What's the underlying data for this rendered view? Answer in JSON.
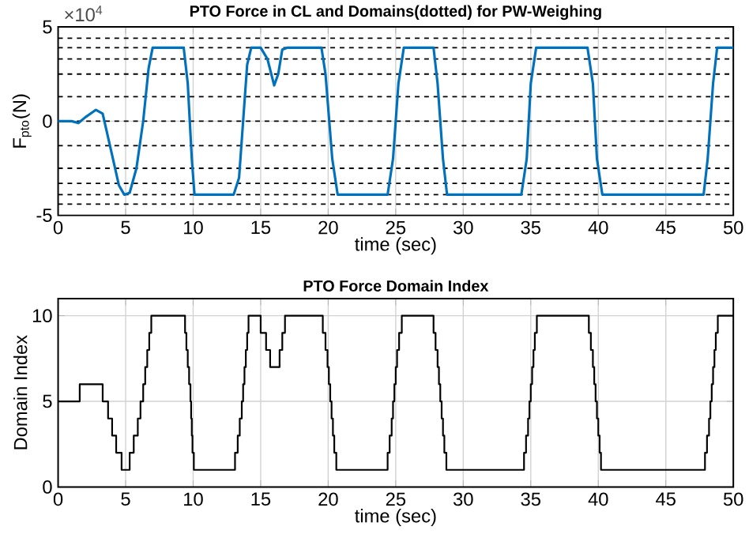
{
  "chart_data": [
    {
      "type": "line",
      "title": "PTO Force in CL and Domains(dotted) for PW-Weighing",
      "xlabel": "time (sec)",
      "ylabel": "F$_{pto}$(N)",
      "annotations": [
        "×10$^{4}$"
      ],
      "xlim": [
        0,
        50
      ],
      "ylim": [
        -5,
        5
      ],
      "xticks": [
        0,
        5,
        10,
        15,
        20,
        25,
        30,
        35,
        40,
        45,
        50
      ],
      "yticks": [
        -5,
        0,
        5
      ],
      "grid": true,
      "series": [
        {
          "color": "#0072bd",
          "x": [
            0,
            1,
            1.5,
            2,
            2.8,
            3.3,
            4,
            4.5,
            4.9,
            5.3,
            5.8,
            6.3,
            6.7,
            7,
            9.3,
            9.6,
            9.9,
            10.1,
            13,
            13.4,
            13.7,
            14.0,
            14.3,
            15,
            15.5,
            16,
            16.3,
            16.6,
            17,
            19.5,
            19.8,
            20.3,
            20.7,
            24.4,
            24.8,
            25.2,
            25.6,
            27.8,
            28.1,
            28.5,
            28.8,
            34.3,
            34.7,
            35,
            35.4,
            39.2,
            39.6,
            39.9,
            40.3,
            47.8,
            48.1,
            48.5,
            48.8,
            50
          ],
          "values": [
            0,
            0,
            -0.1,
            0.2,
            0.6,
            0.4,
            -1.8,
            -3.4,
            -3.9,
            -3.8,
            -2.5,
            0,
            2.8,
            3.9,
            3.9,
            2,
            -2,
            -3.9,
            -3.9,
            -3,
            0,
            3,
            3.9,
            3.9,
            3.3,
            1.9,
            2.5,
            3.8,
            3.9,
            3.9,
            2.5,
            -2,
            -3.9,
            -3.9,
            -2,
            2,
            3.9,
            3.9,
            2,
            -2,
            -3.9,
            -3.9,
            -2,
            2,
            3.9,
            3.9,
            2,
            -2,
            -3.9,
            -3.9,
            -2,
            2,
            3.9,
            3.9
          ]
        }
      ],
      "ref_lines": [
        {
          "axis": "y",
          "value": 4.4,
          "color": "#000000",
          "line_style": "dashed"
        },
        {
          "axis": "y",
          "value": 3.9,
          "color": "#000000",
          "line_style": "dashed"
        },
        {
          "axis": "y",
          "value": 3.3,
          "color": "#000000",
          "line_style": "dashed"
        },
        {
          "axis": "y",
          "value": 2.5,
          "color": "#000000",
          "line_style": "dashed"
        },
        {
          "axis": "y",
          "value": 1.3,
          "color": "#000000",
          "line_style": "dashed"
        },
        {
          "axis": "y",
          "value": 0,
          "color": "#000000",
          "line_style": "dashed"
        },
        {
          "axis": "y",
          "value": -1.3,
          "color": "#000000",
          "line_style": "dashed"
        },
        {
          "axis": "y",
          "value": -2.5,
          "color": "#000000",
          "line_style": "dashed"
        },
        {
          "axis": "y",
          "value": -3.3,
          "color": "#000000",
          "line_style": "dashed"
        },
        {
          "axis": "y",
          "value": -3.9,
          "color": "#000000",
          "line_style": "dashed"
        },
        {
          "axis": "y",
          "value": -4.4,
          "color": "#000000",
          "line_style": "dashed"
        }
      ]
    },
    {
      "type": "step",
      "title": "PTO Force Domain Index",
      "xlabel": "time (sec)",
      "ylabel": "Domain Index",
      "xlim": [
        0,
        50
      ],
      "ylim": [
        0,
        11
      ],
      "xticks": [
        0,
        5,
        10,
        15,
        20,
        25,
        30,
        35,
        40,
        45,
        50
      ],
      "yticks": [
        0,
        5,
        10
      ],
      "grid": true,
      "series": [
        {
          "color": "#000000",
          "x": [
            0,
            1.6,
            3.3,
            3.7,
            4.0,
            4.3,
            4.7,
            5.3,
            5.6,
            5.9,
            6.1,
            6.3,
            6.45,
            6.6,
            6.75,
            6.9,
            9.4,
            9.5,
            9.6,
            9.7,
            9.8,
            9.85,
            9.9,
            9.95,
            10.05,
            13.1,
            13.3,
            13.45,
            13.6,
            13.7,
            13.8,
            13.9,
            14.0,
            14.1,
            15.0,
            15.4,
            15.7,
            16.4,
            16.6,
            16.8,
            19.6,
            19.8,
            19.95,
            20.05,
            20.15,
            20.25,
            20.35,
            20.45,
            20.6,
            24.4,
            24.55,
            24.7,
            24.8,
            24.9,
            25.0,
            25.1,
            25.25,
            25.45,
            27.8,
            27.95,
            28.1,
            28.2,
            28.3,
            28.4,
            28.5,
            28.6,
            28.75,
            34.5,
            34.65,
            34.8,
            34.9,
            35.0,
            35.1,
            35.2,
            35.3,
            35.45,
            39.3,
            39.45,
            39.6,
            39.7,
            39.8,
            39.9,
            40.0,
            40.1,
            40.2,
            47.9,
            48.05,
            48.2,
            48.3,
            48.4,
            48.5,
            48.6,
            48.7,
            48.85,
            50
          ],
          "values": [
            5,
            6,
            5,
            4,
            3,
            2,
            1,
            2,
            3,
            4,
            5,
            6,
            7,
            8,
            9,
            10,
            9,
            8,
            7,
            6,
            5,
            4,
            3,
            2,
            1,
            2,
            3,
            4,
            5,
            6,
            7,
            8,
            9,
            10,
            9,
            8,
            7,
            8,
            9,
            10,
            9,
            8,
            7,
            6,
            5,
            4,
            3,
            2,
            1,
            2,
            3,
            4,
            5,
            6,
            7,
            8,
            9,
            10,
            9,
            8,
            7,
            6,
            5,
            4,
            3,
            2,
            1,
            2,
            3,
            4,
            5,
            6,
            7,
            8,
            9,
            10,
            9,
            8,
            7,
            6,
            5,
            4,
            3,
            2,
            1,
            2,
            3,
            4,
            5,
            6,
            7,
            8,
            9,
            10,
            10
          ]
        }
      ]
    }
  ]
}
